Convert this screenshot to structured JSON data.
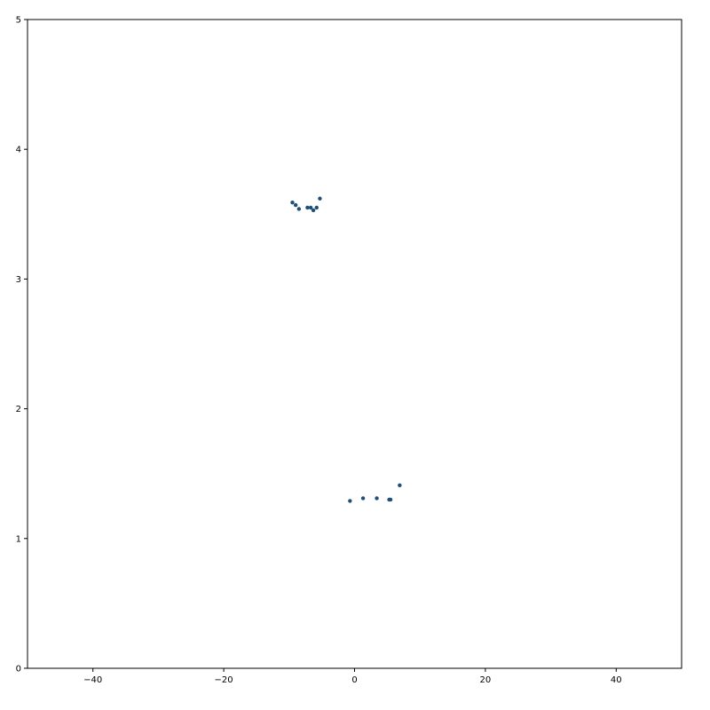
{
  "chart_data": {
    "type": "scatter",
    "title": "",
    "xlabel": "",
    "ylabel": "",
    "xlim": [
      -50,
      50
    ],
    "ylim": [
      0,
      5
    ],
    "grid": false,
    "xticks": [
      -40,
      -20,
      0,
      20,
      40
    ],
    "xtick_labels": [
      "−40",
      "−20",
      "0",
      "20",
      "40"
    ],
    "yticks": [
      0,
      1,
      2,
      3,
      4,
      5
    ],
    "ytick_labels": [
      "0",
      "1",
      "2",
      "3",
      "4",
      "5"
    ],
    "marker_color": "#1f4e79",
    "series": [
      {
        "points": [
          {
            "x": -9.5,
            "y": 3.59
          },
          {
            "x": -9.0,
            "y": 3.57
          },
          {
            "x": -8.5,
            "y": 3.54
          },
          {
            "x": -7.2,
            "y": 3.55
          },
          {
            "x": -6.7,
            "y": 3.55
          },
          {
            "x": -6.3,
            "y": 3.53
          },
          {
            "x": -5.8,
            "y": 3.55
          },
          {
            "x": -5.3,
            "y": 3.62
          },
          {
            "x": -0.7,
            "y": 1.29
          },
          {
            "x": 1.3,
            "y": 1.31
          },
          {
            "x": 3.4,
            "y": 1.31
          },
          {
            "x": 5.3,
            "y": 1.3
          },
          {
            "x": 5.5,
            "y": 1.3
          },
          {
            "x": 6.9,
            "y": 1.41
          }
        ]
      }
    ]
  }
}
